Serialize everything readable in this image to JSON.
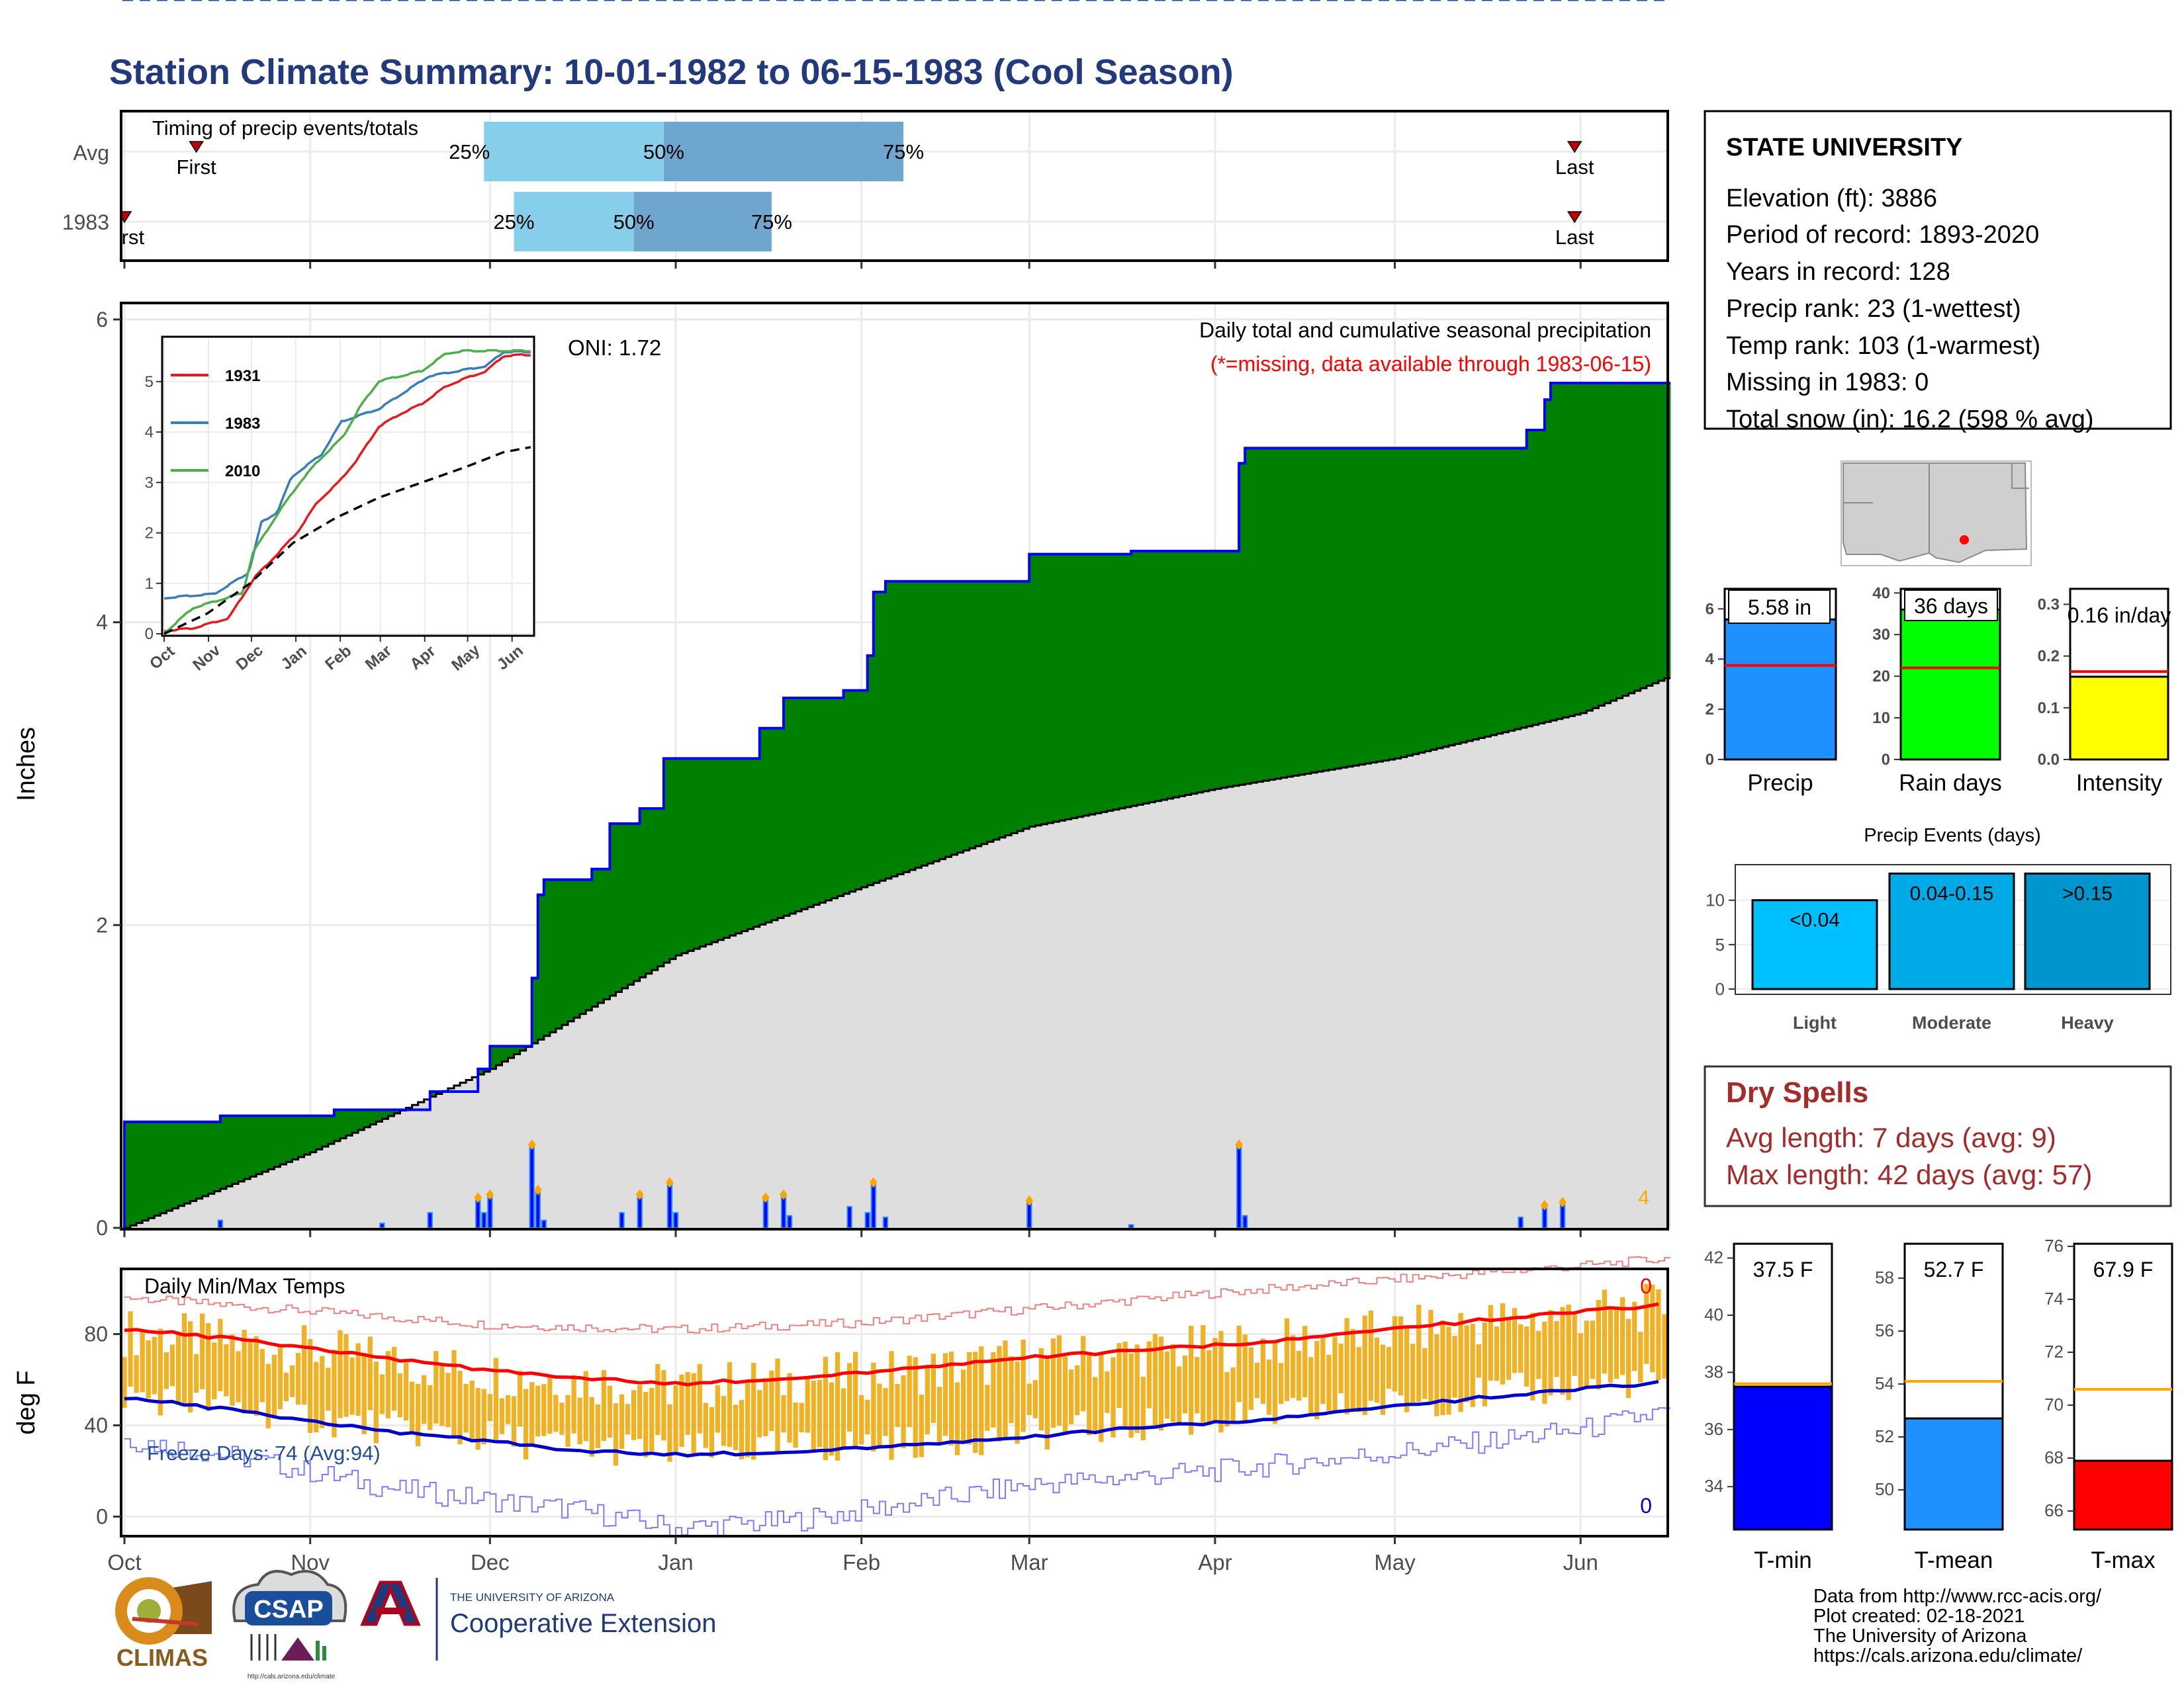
{
  "title": "Station Climate Summary: 10-01-1982 to 06-15-1983 (Cool Season)",
  "colors": {
    "title": "#22397d",
    "precip_green": "#008000",
    "deficit_brown": "#7f5200",
    "normal_gray": "#dedede",
    "cum_blue": "#0000ff",
    "temp_bar": "#f0b124",
    "tmax": "#ff0000",
    "tmin": "#0000cc",
    "dry_red": "#a52a2a",
    "light_blue": "#00bfff",
    "mid_blue": "#00aae6",
    "dark_blue": "#0095cc",
    "timing_light": "#87ceeb",
    "timing_dark": "#6fa6ce"
  },
  "station": {
    "name": "STATE UNIVERSITY",
    "lines": [
      "Elevation (ft): 3886",
      "Period of record: 1893-2020",
      "Years in record: 128",
      "Precip rank: 23 (1-wettest)",
      "Temp rank: 103 (1-warmest)",
      "Missing in 1983: 0",
      "Total snow (in): 16.2 (598 % avg)"
    ]
  },
  "timing": {
    "title": "Timing of precip events/totals",
    "rows": [
      {
        "label": "Avg",
        "first_label": "First",
        "last_label": "Last",
        "first": "1982-10-13",
        "q25": "1982-11-30",
        "q50": "1982-12-30",
        "q75": "1983-02-08",
        "last": "1983-05-31",
        "p25": "25%",
        "p50": "50%",
        "p75": "75%"
      },
      {
        "label": "1983",
        "first_label": "First",
        "last_label": "Last",
        "first": "1982-10-01",
        "q25": "1982-12-05",
        "q50": "1982-12-25",
        "q75": "1983-01-17",
        "last": "1983-05-31",
        "p25": "25%",
        "p50": "50%",
        "p75": "75%"
      }
    ]
  },
  "precip_panel": {
    "ylabel": "Inches",
    "oni": "ONI: 1.72",
    "note1": "Daily total and cumulative seasonal precipitation",
    "note2": "(*=missing, data available through 1983-06-15)",
    "count_label": "4"
  },
  "temp_panel": {
    "title": "Daily Min/Max Temps",
    "ylabel": "deg F",
    "freeze": "Freeze Days: 74 (Avg:94)",
    "freeze_line": 32,
    "max_count": "0",
    "min_count": "0"
  },
  "x_axis": {
    "labels": [
      "Oct",
      "Nov",
      "Dec",
      "Jan",
      "Feb",
      "Mar",
      "Apr",
      "May",
      "Jun"
    ]
  },
  "inset": {
    "legend": [
      "1931",
      "1983",
      "2010"
    ],
    "x_labels": [
      "Oct",
      "Nov",
      "Dec",
      "Jan",
      "Feb",
      "Mar",
      "Apr",
      "May",
      "Jun"
    ]
  },
  "summary_bars": [
    {
      "label": "Precip",
      "value_label": "5.58 in",
      "value": 5.58,
      "avg": 3.75,
      "ylim": [
        0,
        6.8
      ],
      "ticks": [
        0,
        2,
        4,
        6
      ],
      "color": "#1e90ff"
    },
    {
      "label": "Rain days",
      "value_label": "36 days",
      "value": 36,
      "avg": 22,
      "ylim": [
        0,
        41
      ],
      "ticks": [
        0,
        10,
        20,
        30,
        40
      ],
      "color": "#00ff00"
    },
    {
      "label": "Intensity",
      "value_label": "0.16 in/day",
      "value": 0.16,
      "avg": 0.17,
      "ylim": [
        0,
        0.33
      ],
      "ticks": [
        "0.0",
        "0.1",
        "0.2",
        "0.3"
      ],
      "color": "#ffff00"
    }
  ],
  "events": {
    "title": "Precip Events (days)",
    "bars": [
      {
        "label": "Light",
        "range": "<0.04",
        "value": 10,
        "color": "#00bfff"
      },
      {
        "label": "Moderate",
        "range": "0.04-0.15",
        "value": 13,
        "color": "#00aae6"
      },
      {
        "label": "Heavy",
        "range": ">0.15",
        "value": 13,
        "color": "#0095cc"
      }
    ],
    "ticks": [
      0,
      5,
      10
    ]
  },
  "dry_spells": {
    "title": "Dry Spells",
    "avg": "Avg length: 7 days (avg: 9)",
    "max": "Max length: 42 days (avg: 57)"
  },
  "temp_bars": [
    {
      "label": "T-min",
      "value_label": "37.5 F",
      "value": 37.5,
      "avg": 37.6,
      "ylim": [
        32.5,
        42.5
      ],
      "ticks": [
        34,
        36,
        38,
        40,
        42
      ],
      "color": "#0000ff"
    },
    {
      "label": "T-mean",
      "value_label": "52.7 F",
      "value": 52.7,
      "avg": 54.1,
      "ylim": [
        48.5,
        59.3
      ],
      "ticks": [
        50,
        52,
        54,
        56,
        58
      ],
      "color": "#1e90ff"
    },
    {
      "label": "T-max",
      "value_label": "67.9 F",
      "value": 67.9,
      "avg": 70.6,
      "ylim": [
        65.3,
        76.1
      ],
      "ticks": [
        66,
        68,
        70,
        72,
        74,
        76
      ],
      "color": "#ff0000"
    }
  ],
  "credits": [
    "Data from http://www.rcc-acis.org/",
    "Plot created: 02-18-2021",
    "The University of Arizona",
    "https://cals.arizona.edu/climate/"
  ],
  "logos": {
    "climas": "CLIMAS",
    "csap": "CSAP",
    "csap_url": "http://cals.arizona.edu/climate",
    "ua_small": "THE UNIVERSITY OF ARIZONA",
    "ua_big": "Cooperative Extension"
  },
  "chart_data": {
    "type": "area",
    "title": "Daily total and cumulative seasonal precipitation",
    "ylabel": "Inches",
    "ylim": [
      0,
      6.1
    ],
    "x_range": [
      "1982-10-01",
      "1983-06-15"
    ],
    "cumulative_1983": [
      [
        "1982-10-01",
        0.7
      ],
      [
        "1982-10-17",
        0.74
      ],
      [
        "1982-11-05",
        0.78
      ],
      [
        "1982-11-21",
        0.9
      ],
      [
        "1982-11-29",
        1.05
      ],
      [
        "1982-12-01",
        1.2
      ],
      [
        "1982-12-08",
        1.65
      ],
      [
        "1982-12-09",
        2.2
      ],
      [
        "1982-12-10",
        2.3
      ],
      [
        "1982-12-18",
        2.37
      ],
      [
        "1982-12-21",
        2.67
      ],
      [
        "1982-12-26",
        2.77
      ],
      [
        "1982-12-30",
        3.1
      ],
      [
        "1983-01-15",
        3.3
      ],
      [
        "1983-01-19",
        3.5
      ],
      [
        "1983-01-29",
        3.55
      ],
      [
        "1983-02-02",
        3.78
      ],
      [
        "1983-02-03",
        4.2
      ],
      [
        "1983-02-05",
        4.27
      ],
      [
        "1983-03-01",
        4.45
      ],
      [
        "1983-03-18",
        4.47
      ],
      [
        "1983-04-05",
        5.05
      ],
      [
        "1983-04-06",
        5.15
      ],
      [
        "1983-05-23",
        5.27
      ],
      [
        "1983-05-26",
        5.47
      ],
      [
        "1983-05-27",
        5.58
      ]
    ],
    "normal_cumulative": [
      [
        "1982-10-01",
        0.0
      ],
      [
        "1982-11-01",
        0.5
      ],
      [
        "1982-12-01",
        1.05
      ],
      [
        "1983-01-01",
        1.8
      ],
      [
        "1983-02-01",
        2.25
      ],
      [
        "1983-03-01",
        2.65
      ],
      [
        "1983-04-01",
        2.9
      ],
      [
        "1983-05-01",
        3.1
      ],
      [
        "1983-06-01",
        3.4
      ],
      [
        "1983-06-15",
        3.63
      ]
    ],
    "daily_1983": [
      [
        "1982-10-17",
        0.05
      ],
      [
        "1982-11-13",
        0.03
      ],
      [
        "1982-11-21",
        0.1
      ],
      [
        "1982-11-29",
        0.2
      ],
      [
        "1982-11-30",
        0.1
      ],
      [
        "1982-12-01",
        0.22
      ],
      [
        "1982-12-08",
        0.55
      ],
      [
        "1982-12-09",
        0.25
      ],
      [
        "1982-12-10",
        0.05
      ],
      [
        "1982-12-23",
        0.1
      ],
      [
        "1982-12-26",
        0.22
      ],
      [
        "1982-12-31",
        0.3
      ],
      [
        "1983-01-01",
        0.1
      ],
      [
        "1983-01-16",
        0.2
      ],
      [
        "1983-01-19",
        0.22
      ],
      [
        "1983-01-20",
        0.08
      ],
      [
        "1983-01-30",
        0.14
      ],
      [
        "1983-02-02",
        0.1
      ],
      [
        "1983-02-03",
        0.3
      ],
      [
        "1983-02-05",
        0.07
      ],
      [
        "1983-03-01",
        0.18
      ],
      [
        "1983-03-18",
        0.02
      ],
      [
        "1983-04-05",
        0.55
      ],
      [
        "1983-04-06",
        0.08
      ],
      [
        "1983-05-22",
        0.07
      ],
      [
        "1983-05-26",
        0.15
      ],
      [
        "1983-05-29",
        0.17
      ]
    ],
    "series": [
      {
        "name": "1931",
        "values": [
          [
            0,
            0.05
          ],
          [
            20,
            0.1
          ],
          [
            45,
            0.3
          ],
          [
            63,
            1.1
          ],
          [
            80,
            1.6
          ],
          [
            93,
            2.0
          ],
          [
            107,
            2.6
          ],
          [
            122,
            3.0
          ],
          [
            135,
            3.45
          ],
          [
            150,
            4.1
          ],
          [
            165,
            4.35
          ],
          [
            180,
            4.55
          ],
          [
            197,
            4.9
          ],
          [
            210,
            5.05
          ],
          [
            225,
            5.2
          ],
          [
            237,
            5.5
          ],
          [
            250,
            5.52
          ]
        ]
      },
      {
        "name": "1983",
        "values": [
          [
            0,
            0.7
          ],
          [
            16,
            0.74
          ],
          [
            35,
            0.78
          ],
          [
            59,
            1.2
          ],
          [
            68,
            2.2
          ],
          [
            79,
            2.4
          ],
          [
            89,
            3.1
          ],
          [
            110,
            3.55
          ],
          [
            124,
            4.2
          ],
          [
            150,
            4.45
          ],
          [
            185,
            5.1
          ],
          [
            225,
            5.3
          ],
          [
            237,
            5.58
          ],
          [
            250,
            5.58
          ]
        ]
      },
      {
        "name": "2010",
        "values": [
          [
            0,
            0.0
          ],
          [
            20,
            0.5
          ],
          [
            55,
            0.8
          ],
          [
            62,
            1.6
          ],
          [
            80,
            2.4
          ],
          [
            95,
            3.0
          ],
          [
            107,
            3.4
          ],
          [
            125,
            3.9
          ],
          [
            137,
            4.5
          ],
          [
            150,
            5.0
          ],
          [
            180,
            5.2
          ],
          [
            197,
            5.55
          ],
          [
            210,
            5.6
          ],
          [
            256,
            5.6
          ]
        ]
      }
    ],
    "inset_normal": [
      [
        0,
        0.0
      ],
      [
        30,
        0.4
      ],
      [
        60,
        1.0
      ],
      [
        90,
        1.8
      ],
      [
        120,
        2.3
      ],
      [
        150,
        2.7
      ],
      [
        180,
        3.0
      ],
      [
        210,
        3.3
      ],
      [
        237,
        3.6
      ],
      [
        256,
        3.7
      ]
    ],
    "temperature": {
      "ylim": [
        -8,
        108
      ],
      "ticks": [
        0,
        40,
        80
      ],
      "avg_max": [
        [
          "1982-10-01",
          82
        ],
        [
          "1982-10-15",
          79
        ],
        [
          "1982-11-01",
          74
        ],
        [
          "1982-11-15",
          69
        ],
        [
          "1982-12-01",
          64
        ],
        [
          "1982-12-15",
          61
        ],
        [
          "1983-01-01",
          58
        ],
        [
          "1983-01-15",
          60
        ],
        [
          "1983-02-01",
          63
        ],
        [
          "1983-02-15",
          66
        ],
        [
          "1983-03-01",
          70
        ],
        [
          "1983-03-15",
          72
        ],
        [
          "1983-04-01",
          75
        ],
        [
          "1983-04-15",
          78
        ],
        [
          "1983-05-01",
          82
        ],
        [
          "1983-05-15",
          86
        ],
        [
          "1983-06-01",
          90
        ],
        [
          "1983-06-15",
          93
        ]
      ],
      "avg_min": [
        [
          "1982-10-01",
          52
        ],
        [
          "1982-10-15",
          48
        ],
        [
          "1982-11-01",
          42
        ],
        [
          "1982-11-15",
          37
        ],
        [
          "1982-12-01",
          33
        ],
        [
          "1982-12-15",
          29
        ],
        [
          "1983-01-01",
          27
        ],
        [
          "1983-01-15",
          28
        ],
        [
          "1983-02-01",
          30
        ],
        [
          "1983-02-15",
          32
        ],
        [
          "1983-03-01",
          35
        ],
        [
          "1983-03-15",
          38
        ],
        [
          "1983-04-01",
          41
        ],
        [
          "1983-04-15",
          44
        ],
        [
          "1983-05-01",
          48
        ],
        [
          "1983-05-15",
          52
        ],
        [
          "1983-06-01",
          56
        ],
        [
          "1983-06-15",
          59
        ]
      ],
      "record_max": [
        [
          "1982-10-01",
          96
        ],
        [
          "1982-11-01",
          90
        ],
        [
          "1982-12-01",
          84
        ],
        [
          "1983-01-01",
          82
        ],
        [
          "1983-02-01",
          85
        ],
        [
          "1983-03-01",
          91
        ],
        [
          "1983-04-01",
          98
        ],
        [
          "1983-05-01",
          104
        ],
        [
          "1983-06-01",
          110
        ],
        [
          "1983-06-15",
          113
        ]
      ],
      "record_min": [
        [
          "1982-10-01",
          34
        ],
        [
          "1982-10-20",
          26
        ],
        [
          "1982-11-15",
          12
        ],
        [
          "1982-12-15",
          3
        ],
        [
          "1983-01-01",
          -5
        ],
        [
          "1983-01-20",
          -2
        ],
        [
          "1983-02-10",
          6
        ],
        [
          "1983-03-01",
          14
        ],
        [
          "1983-04-01",
          20
        ],
        [
          "1983-05-01",
          28
        ],
        [
          "1983-06-01",
          38
        ],
        [
          "1983-06-15",
          46
        ]
      ]
    }
  }
}
